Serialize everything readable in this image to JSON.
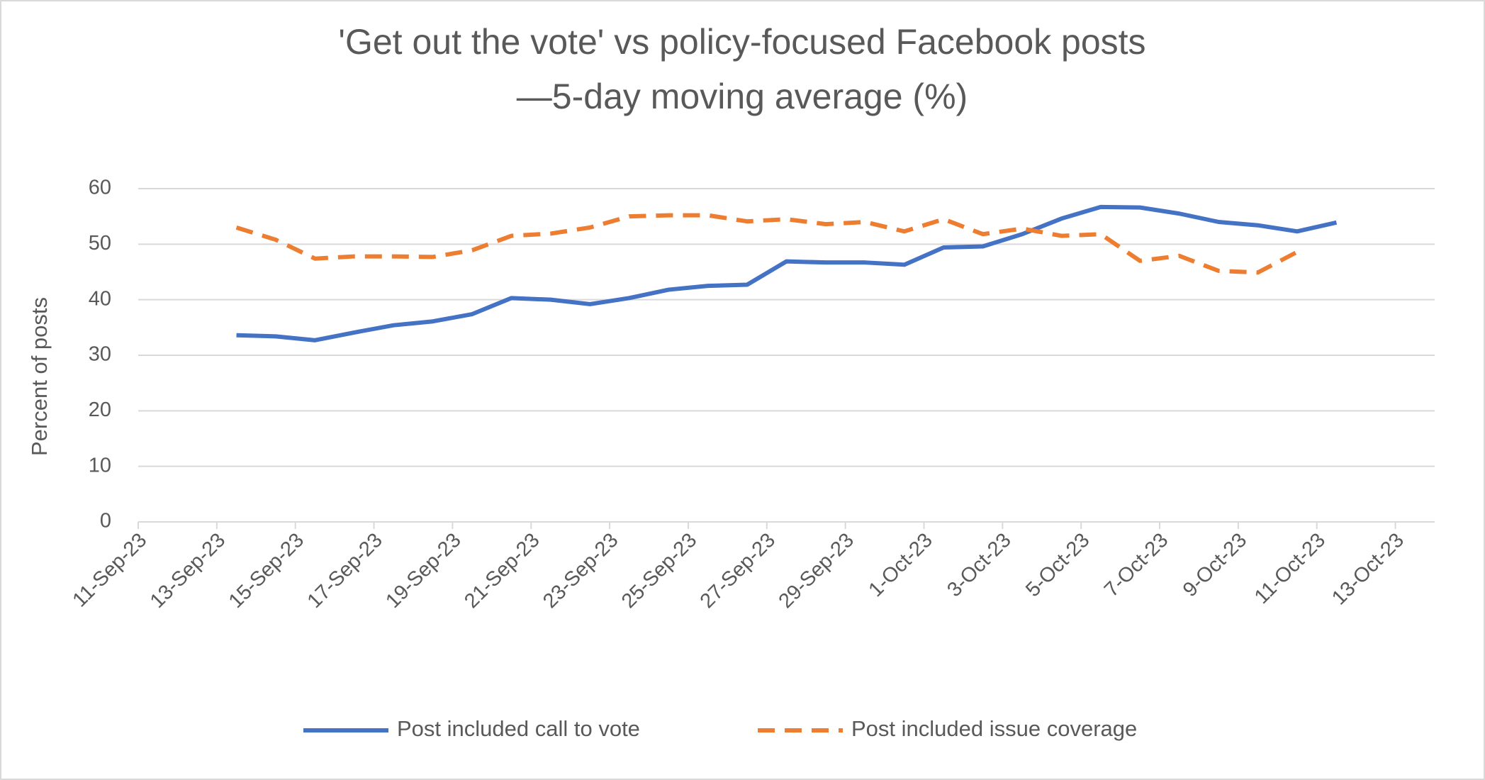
{
  "chart_data": {
    "type": "line",
    "title": [
      "'Get out the vote' vs policy-focused Facebook posts",
      "—5-day moving average (%)"
    ],
    "y_label": "Percent of posts",
    "x": [
      "13-Sep-23",
      "14-Sep-23",
      "15-Sep-23",
      "16-Sep-23",
      "17-Sep-23",
      "18-Sep-23",
      "19-Sep-23",
      "20-Sep-23",
      "21-Sep-23",
      "22-Sep-23",
      "23-Sep-23",
      "24-Sep-23",
      "25-Sep-23",
      "26-Sep-23",
      "27-Sep-23",
      "28-Sep-23",
      "29-Sep-23",
      "30-Sep-23",
      "1-Oct-23",
      "2-Oct-23",
      "3-Oct-23",
      "4-Oct-23",
      "5-Oct-23",
      "6-Oct-23",
      "7-Oct-23",
      "8-Oct-23",
      "9-Oct-23",
      "10-Oct-23",
      "11-Oct-23"
    ],
    "series": [
      {
        "name": "Post included call to vote",
        "color": "#4472c4",
        "style": "solid",
        "values": [
          33.6,
          33.4,
          32.7,
          34.1,
          35.4,
          36.1,
          37.4,
          40.3,
          40.0,
          39.2,
          40.3,
          41.8,
          42.5,
          42.7,
          46.9,
          46.7,
          46.7,
          46.3,
          49.4,
          49.6,
          51.8,
          54.6,
          56.7,
          56.6,
          55.5,
          54.0,
          53.4,
          52.3,
          53.9
        ]
      },
      {
        "name": "Post included issue coverage",
        "color": "#ed7d31",
        "style": "dashed",
        "values": [
          53.0,
          50.8,
          47.4,
          47.8,
          47.8,
          47.7,
          48.9,
          51.5,
          51.9,
          53.0,
          55.0,
          55.2,
          55.2,
          54.1,
          54.5,
          53.6,
          54.0,
          52.3,
          54.5,
          51.8,
          52.8,
          51.5,
          51.8,
          47.0,
          47.9,
          45.2,
          44.9,
          48.6,
          null
        ]
      }
    ],
    "xlim": [
      "11-Sep-23",
      "14-Oct-23"
    ],
    "xticks": [
      "11-Sep-23",
      "13-Sep-23",
      "15-Sep-23",
      "17-Sep-23",
      "19-Sep-23",
      "21-Sep-23",
      "23-Sep-23",
      "25-Sep-23",
      "27-Sep-23",
      "29-Sep-23",
      "1-Oct-23",
      "3-Oct-23",
      "5-Oct-23",
      "7-Oct-23",
      "9-Oct-23",
      "11-Oct-23",
      "13-Oct-23"
    ],
    "ylim": [
      0,
      60
    ],
    "yticks": [
      0,
      10,
      20,
      30,
      40,
      50,
      60
    ],
    "grid": true,
    "legend": "bottom"
  }
}
